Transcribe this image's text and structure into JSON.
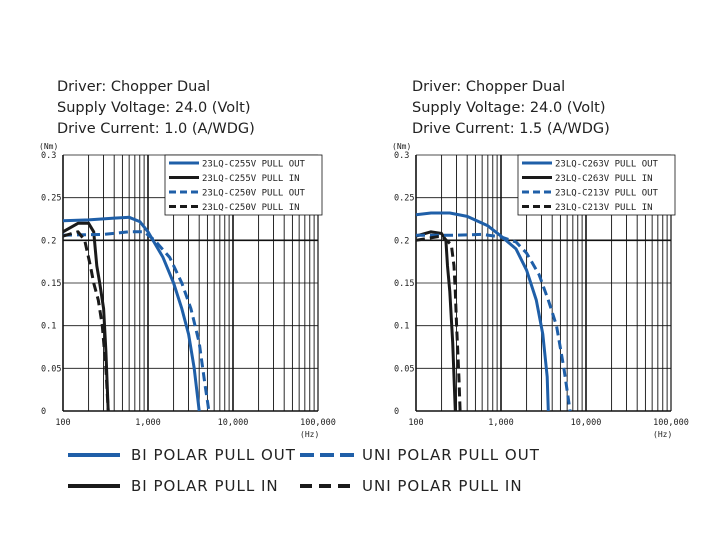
{
  "colors": {
    "blue": "#1f5fa8",
    "black": "#1a1a1a",
    "grid": "#111111"
  },
  "charts": [
    {
      "header": [
        "Driver: Chopper Dual",
        "Supply Voltage: 24.0 (Volt)",
        "Drive Current: 1.0 (A/WDG)"
      ],
      "y_unit": "(Nm)",
      "x_unit": "(Hz)",
      "legend": [
        "23LQ-C255V PULL OUT",
        "23LQ-C255V PULL IN",
        "23LQ-C250V PULL OUT",
        "23LQ-C250V PULL IN"
      ]
    },
    {
      "header": [
        "Driver: Chopper Dual",
        "Supply Voltage: 24.0 (Volt)",
        "Drive Current: 1.5 (A/WDG)"
      ],
      "y_unit": "(Nm)",
      "x_unit": "(Hz)",
      "legend": [
        "23LQ-C263V PULL OUT",
        "23LQ-C263V PULL IN",
        "23LQ-C213V PULL OUT",
        "23LQ-C213V PULL IN"
      ]
    }
  ],
  "bottom_legend": {
    "bi_pull_out": "BI POLAR PULL OUT",
    "uni_pull_out": "UNI POLAR PULL OUT",
    "bi_pull_in": "BI POLAR PULL IN",
    "uni_pull_in": "UNI POLAR PULL IN"
  },
  "chart_data": [
    {
      "type": "line",
      "x_scale": "log",
      "xlim": [
        100,
        100000
      ],
      "ylim": [
        0,
        0.3
      ],
      "x_ticks": [
        "100",
        "1,000",
        "10,000",
        "100,000"
      ],
      "y_ticks": [
        "0",
        "0.05",
        "0.1",
        "0.15",
        "0.2",
        "0.25",
        "0.3"
      ],
      "grid": true,
      "legend_position": "top-right",
      "series": [
        {
          "name": "23LQ-C255V PULL OUT",
          "style": "solid",
          "color": "blue",
          "x": [
            100,
            200,
            400,
            600,
            800,
            1000,
            1500,
            2000,
            2500,
            3000,
            3500,
            4000
          ],
          "y": [
            0.223,
            0.224,
            0.226,
            0.227,
            0.222,
            0.21,
            0.18,
            0.15,
            0.12,
            0.09,
            0.05,
            0
          ]
        },
        {
          "name": "23LQ-C255V PULL IN",
          "style": "solid",
          "color": "black",
          "x": [
            100,
            150,
            200,
            230,
            250,
            270,
            300,
            320,
            340
          ],
          "y": [
            0.21,
            0.22,
            0.22,
            0.21,
            0.17,
            0.15,
            0.12,
            0.07,
            0
          ]
        },
        {
          "name": "23LQ-C250V PULL OUT",
          "style": "dashed",
          "color": "blue",
          "x": [
            100,
            300,
            600,
            900,
            1200,
            1800,
            2500,
            3200,
            4000,
            4700,
            5200
          ],
          "y": [
            0.206,
            0.207,
            0.21,
            0.21,
            0.2,
            0.18,
            0.15,
            0.12,
            0.08,
            0.03,
            0
          ]
        },
        {
          "name": "23LQ-C250V PULL IN",
          "style": "dashed",
          "color": "black",
          "x": [
            100,
            150,
            180,
            210,
            230,
            260,
            290,
            320,
            340
          ],
          "y": [
            0.205,
            0.21,
            0.2,
            0.17,
            0.15,
            0.13,
            0.1,
            0.05,
            0
          ]
        }
      ]
    },
    {
      "type": "line",
      "x_scale": "log",
      "xlim": [
        100,
        100000
      ],
      "ylim": [
        0,
        0.3
      ],
      "x_ticks": [
        "100",
        "1,000",
        "10,000",
        "100,000"
      ],
      "y_ticks": [
        "0",
        "0.05",
        "0.1",
        "0.15",
        "0.2",
        "0.25",
        "0.3"
      ],
      "grid": true,
      "legend_position": "top-right",
      "series": [
        {
          "name": "23LQ-C263V PULL OUT",
          "style": "solid",
          "color": "blue",
          "x": [
            100,
            150,
            250,
            400,
            700,
            1000,
            1500,
            2000,
            2600,
            3100,
            3500,
            3600
          ],
          "y": [
            0.23,
            0.232,
            0.232,
            0.228,
            0.217,
            0.205,
            0.19,
            0.165,
            0.13,
            0.09,
            0.04,
            0
          ]
        },
        {
          "name": "23LQ-C263V PULL IN",
          "style": "solid",
          "color": "black",
          "x": [
            100,
            150,
            200,
            225,
            235,
            250,
            270,
            290
          ],
          "y": [
            0.205,
            0.21,
            0.208,
            0.2,
            0.17,
            0.14,
            0.08,
            0
          ]
        },
        {
          "name": "23LQ-C213V PULL OUT",
          "style": "dashed",
          "color": "blue",
          "x": [
            100,
            300,
            600,
            1000,
            1500,
            2000,
            2800,
            3600,
            4500,
            5500,
            6500
          ],
          "y": [
            0.206,
            0.206,
            0.207,
            0.204,
            0.198,
            0.185,
            0.16,
            0.13,
            0.1,
            0.05,
            0
          ]
        },
        {
          "name": "23LQ-C213V PULL IN",
          "style": "dashed",
          "color": "black",
          "x": [
            100,
            200,
            260,
            280,
            290,
            300,
            320,
            330
          ],
          "y": [
            0.2,
            0.205,
            0.195,
            0.17,
            0.14,
            0.1,
            0.04,
            0
          ]
        }
      ]
    }
  ]
}
